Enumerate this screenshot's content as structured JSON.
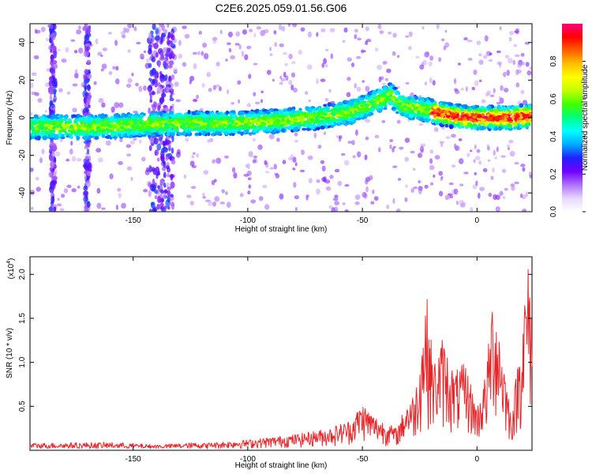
{
  "page": {
    "title": "C2E6.2025.059.01.56.G06"
  },
  "colors": {
    "snr_line": "#e8262a",
    "background": "#ffffff"
  },
  "chart_data": [
    {
      "type": "heatmap",
      "xlabel": "Height of straight line (km)",
      "ylabel": "Frequency (Hz)",
      "xlim": [
        -195,
        24
      ],
      "ylim": [
        -50,
        50
      ],
      "xticks": [
        "-150",
        "-100",
        "-50",
        "0"
      ],
      "xtick_values": [
        -150,
        -100,
        -50,
        0
      ],
      "yticks": [
        "-40",
        "-20",
        "0",
        "20",
        "40"
      ],
      "ytick_values": [
        -40,
        -20,
        0,
        20,
        40
      ],
      "description_ridge": [
        {
          "x": -195,
          "y": -5
        },
        {
          "x": -170,
          "y": -5
        },
        {
          "x": -150,
          "y": -4
        },
        {
          "x": -130,
          "y": -3
        },
        {
          "x": -110,
          "y": -3
        },
        {
          "x": -90,
          "y": -2
        },
        {
          "x": -70,
          "y": 0
        },
        {
          "x": -55,
          "y": 3
        },
        {
          "x": -45,
          "y": 8
        },
        {
          "x": -38,
          "y": 12
        },
        {
          "x": -32,
          "y": 6
        },
        {
          "x": -25,
          "y": 5
        },
        {
          "x": -15,
          "y": 2
        },
        {
          "x": -5,
          "y": 0
        },
        {
          "x": 5,
          "y": 0
        },
        {
          "x": 15,
          "y": 0
        },
        {
          "x": 24,
          "y": 1
        }
      ],
      "colorbar": {
        "label": "Normalized spectral amplitude",
        "range": [
          0,
          1
        ],
        "ticks": [
          "0.0",
          "0.2",
          "0.4",
          "0.6",
          "0.8"
        ],
        "tick_values": [
          0.0,
          0.2,
          0.4,
          0.6,
          0.8
        ],
        "colors": [
          "#ffffff",
          "#e8d8ff",
          "#b070ff",
          "#7000ff",
          "#2020ff",
          "#00aaff",
          "#00ffff",
          "#00ff80",
          "#40ff00",
          "#c0ff00",
          "#ffff00",
          "#ffc000",
          "#ff6000",
          "#ff0000",
          "#ff0080"
        ]
      }
    },
    {
      "type": "line",
      "xlabel": "Height of straight line (km)",
      "ylabel": "SNR (10 * v/v)",
      "multiplier_label": "(x10",
      "multiplier_exp": "4",
      "xlim": [
        -195,
        24
      ],
      "ylim": [
        0,
        2.2
      ],
      "xticks": [
        "-150",
        "-100",
        "-50",
        "0"
      ],
      "xtick_values": [
        -150,
        -100,
        -50,
        0
      ],
      "yticks": [
        "0.5",
        "1.0",
        "1.5",
        "2.0"
      ],
      "ytick_values": [
        0.5,
        1.0,
        1.5,
        2.0
      ],
      "envelope": [
        {
          "x": -195,
          "y": 0.07
        },
        {
          "x": -160,
          "y": 0.08
        },
        {
          "x": -140,
          "y": 0.05
        },
        {
          "x": -120,
          "y": 0.08
        },
        {
          "x": -100,
          "y": 0.12
        },
        {
          "x": -80,
          "y": 0.18
        },
        {
          "x": -65,
          "y": 0.25
        },
        {
          "x": -55,
          "y": 0.35
        },
        {
          "x": -50,
          "y": 0.55
        },
        {
          "x": -45,
          "y": 0.4
        },
        {
          "x": -35,
          "y": 0.25
        },
        {
          "x": -30,
          "y": 0.6
        },
        {
          "x": -27,
          "y": 0.65
        },
        {
          "x": -22,
          "y": 1.8
        },
        {
          "x": -19,
          "y": 1.0
        },
        {
          "x": -15,
          "y": 1.3
        },
        {
          "x": -10,
          "y": 0.9
        },
        {
          "x": -5,
          "y": 1.0
        },
        {
          "x": 0,
          "y": 0.5
        },
        {
          "x": 4,
          "y": 0.9
        },
        {
          "x": 7,
          "y": 1.85
        },
        {
          "x": 10,
          "y": 1.4
        },
        {
          "x": 15,
          "y": 0.4
        },
        {
          "x": 19,
          "y": 1.3
        },
        {
          "x": 22,
          "y": 2.15
        },
        {
          "x": 24,
          "y": 1.9
        }
      ]
    }
  ]
}
